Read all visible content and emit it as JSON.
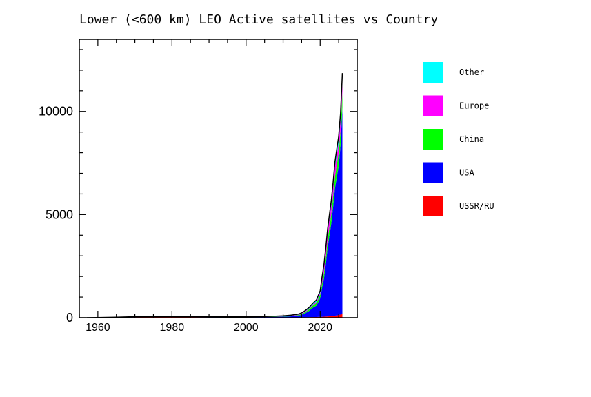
{
  "chart_data": {
    "type": "area",
    "title": "Lower (<600 km) LEO Active satellites vs Country",
    "xlabel": "",
    "ylabel": "",
    "xlim": [
      1955,
      2030
    ],
    "ylim": [
      0,
      13500
    ],
    "xticks": [
      1960,
      1980,
      2000,
      2020
    ],
    "yticks": [
      0,
      5000,
      10000
    ],
    "stacking": "stacked",
    "x": [
      1957,
      1965,
      1970,
      1975,
      1980,
      1985,
      1990,
      1995,
      2000,
      2005,
      2008,
      2010,
      2012,
      2014,
      2015,
      2016,
      2017,
      2018,
      2019,
      2020,
      2020.5,
      2021,
      2021.5,
      2022,
      2022.5,
      2023,
      2023.5,
      2024,
      2024.5,
      2025,
      2025.5,
      2026
    ],
    "series": [
      {
        "name": "USSR/RU",
        "color": "#ff0000",
        "values": [
          0,
          10,
          30,
          40,
          40,
          35,
          25,
          15,
          10,
          10,
          10,
          10,
          15,
          15,
          20,
          20,
          25,
          30,
          35,
          40,
          45,
          50,
          55,
          60,
          70,
          80,
          90,
          100,
          110,
          130,
          150,
          180
        ]
      },
      {
        "name": "USA",
        "color": "#0000ff",
        "values": [
          0,
          15,
          20,
          15,
          15,
          15,
          15,
          15,
          20,
          25,
          35,
          40,
          50,
          80,
          120,
          200,
          300,
          450,
          550,
          900,
          1400,
          1800,
          2500,
          3300,
          3900,
          4500,
          5300,
          6200,
          6700,
          7200,
          8200,
          10000
        ]
      },
      {
        "name": "China",
        "color": "#00ff00",
        "values": [
          0,
          0,
          0,
          0,
          0,
          0,
          0,
          0,
          0,
          5,
          10,
          15,
          20,
          30,
          40,
          60,
          80,
          100,
          130,
          180,
          220,
          280,
          330,
          380,
          420,
          450,
          500,
          550,
          600,
          650,
          700,
          780
        ]
      },
      {
        "name": "Europe",
        "color": "#ff00ff",
        "values": [
          0,
          0,
          0,
          0,
          2,
          2,
          3,
          5,
          5,
          8,
          10,
          12,
          15,
          20,
          25,
          30,
          40,
          50,
          60,
          80,
          180,
          250,
          300,
          350,
          400,
          420,
          440,
          460,
          480,
          500,
          520,
          550
        ]
      },
      {
        "name": "Other",
        "color": "#00ffff",
        "values": [
          0,
          0,
          0,
          0,
          0,
          2,
          3,
          5,
          8,
          10,
          12,
          15,
          20,
          25,
          30,
          40,
          50,
          70,
          90,
          110,
          130,
          150,
          170,
          190,
          210,
          230,
          250,
          270,
          290,
          310,
          330,
          350
        ]
      }
    ],
    "legend": {
      "placement": "right",
      "entries": [
        "Other",
        "Europe",
        "China",
        "USA",
        "USSR/RU"
      ]
    },
    "grid": false
  }
}
